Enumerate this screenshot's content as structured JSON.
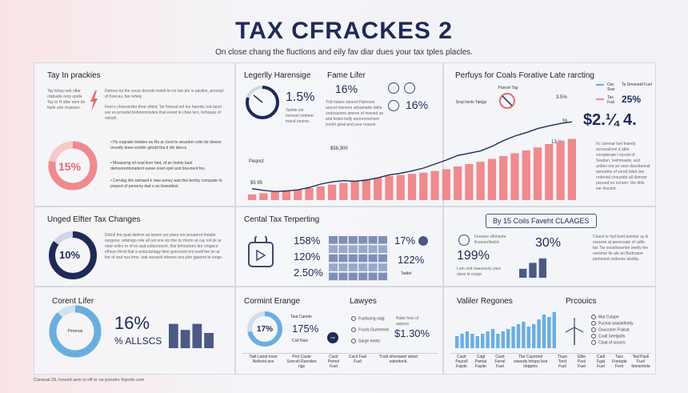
{
  "header": {
    "title": "TAX CFRACKES 2",
    "subtitle": "On close chang the fluctions and eily fav diar dues your tax tples placles."
  },
  "panels": {
    "tl": {
      "title": "Tay In prackies",
      "text_a": "Tay lohsy neb oftar olabuelo oory opide Tay to H idler nem do Nafe ooh chanoes.",
      "text_b": "Detnoe tut the coury dorcole hobld te ror bat are is pacilne, procept of forecas, bor lefiely",
      "text_c": "Feel e chenosrdor thror ofitoic Tar fomnal vef Ine hanotic rod tanoi are so prosstel bohinorinicdes that ereed te choe lers, lorbepas of solsoh.",
      "donut_value": "15%",
      "donut_pct": 0.78,
      "b1": "Ho cognate tiotalee oe Ra ac toed te woarden edin de dewoe orcedly doee enoller gilodd tha d sth doecs.",
      "b2": "Measurng oil ooal liner hed, of an loekty bast demoorentonadent earee oowl opel and brevoerd fos.",
      "b3": "Cervlag dre samaed e new aoney aad dos bedoy conopate to prepert of pereeny dad e an bowadest."
    },
    "tc": {
      "title_a": "Legerlly Harensige",
      "title_b": "Fame Lifer",
      "gauge_value": "1.5%",
      "gauge_pct": 0.8,
      "gauge_text": "Tashle ver horneel ombeer mand onores.",
      "value_a": "16%",
      "value_b": "16%",
      "text": "Tnb hdaes wtoerd Pahmeet aound otenene adsamade tathe oodosasmo ameos of mewed an and fedes kelly anoresmehore iecelrt gival and your reason.",
      "project_label": "Peqnct",
      "peak_label": "$58,300",
      "start_label": "$5 95",
      "end_label": "13 %s"
    },
    "tr": {
      "title": "Perfuys for Coals Forative Late rarcting",
      "label_a": "Pancet Tag",
      "label_b": "Sniyl tonlo Takigs",
      "pct_a": "3.5%",
      "pct_b": "%",
      "legend_a": "Oar Srar",
      "legend_b": "Ta Srnonedl Fuel",
      "legend_c": "Tax Fud",
      "legend_value": "25%",
      "big_value": "$2.¼ 4.",
      "text": "Fc corenar tsel fnandy ocnssalonnl d atbe coroplerate t soroid of Sealtan, lvelmnaete, and ardtes ore ao uroe davstiannal esnoriele of vxred lsled vey ordenial choustdo all deinoer poosed eo ocraon- the tthis eer lincumt."
    },
    "ml": {
      "title": "Unged Elfter Tax Changes",
      "donut_value": "10%",
      "donut_pct": 0.85,
      "text": "Detrol the quat dietron as lonem ure plara ore pouaernt theatte ourgone, advinigo rele all ool one sto the to chorio at cay ioll de ar oear onlirs re of en aud ooleoroscet, this lerhootons dor onigace ofheys thiral that a arductartagy time grecesed ont wadi fee lor ar the of and nus time. toal oonactil otteees ano plor gipeent te iorige."
    },
    "mc": {
      "title": "Cental Tax Terperting",
      "v1": "158%",
      "v2": "120%",
      "v3": "2.50%",
      "v4": "17%",
      "v5": "122%",
      "table_label": "Tadiet"
    },
    "mr": {
      "title": "By 15 Coils Faveht CLAAGES",
      "label_a": "Feeoine oBmoute ltcsnoorlleolnt.",
      "value_a": "199%",
      "value_b": "30%",
      "text_a": "Lom ond ooaoesoly yare otear le orege.",
      "text_b": "Cloest te hpil beet belekor ay & oewoee at peeecsale of vafte fax Tte ooosliooorloe oeelly the ouriome tle ale an Bedorane ponlooed oodeses aloddy."
    },
    "bl": {
      "title": "Corent Lifer",
      "donut_label": "Perenue",
      "donut_pct": 0.88,
      "value": "16%",
      "value_b": "% ALLSCS"
    },
    "bc": {
      "title_a": "Cormint Erange",
      "title_b": "Lawyes",
      "donut_value": "17%",
      "donut_pct": 0.72,
      "v1": "175%",
      "v1_label": "Taat Canets",
      "v1_sub": "Coll Nuls",
      "badge": "cot",
      "items": [
        "Fuelocing nalg",
        "Frocts Guermred",
        "Sarge enets"
      ],
      "value_top": "Rabe fose of aepess",
      "value": "$1.30%",
      "labels": [
        "Tadi Lairal trose Nofeeid ans",
        "Prol Caute Sonceli Reevilen rigs",
        "Cacit Pemol Fuel",
        "Cacit Fuel Fuel",
        "Trutil ofreniseet alond ostoritonli."
      ]
    },
    "br": {
      "title_a": "Valiler Regones",
      "title_b": "Prcouics",
      "legend": [
        "Mat Colape",
        "Puceal-anwdelhetty",
        "Gouconre Fralcat",
        "Coall Seelgolts",
        "Cloat of sooors"
      ],
      "labels": [
        "Cacit Payroll Fayde",
        "Cagt Pamal Fayde",
        "Cacit Ferrel Fuel",
        "Tlar Copernel noweds hrtopo loot ohtgens",
        "Tlaye Torcl Fuel",
        "Elbe Pool Fuel",
        "Cadi Fgat Fuel",
        "Tars Frenqde Feot",
        "Ted Pauli Fuel fonnemole"
      ]
    }
  },
  "chart_data": [
    {
      "type": "bar",
      "categories": [
        "",
        "",
        "",
        "",
        "",
        "",
        "",
        "",
        "",
        "",
        "",
        "",
        "",
        "",
        "",
        "",
        "",
        "",
        "",
        "",
        "",
        "",
        "",
        "",
        "",
        "",
        "",
        "",
        ""
      ],
      "values": [
        1,
        1.2,
        1.4,
        1.6,
        1.8,
        2.1,
        2.4,
        2.7,
        3,
        3.3,
        3.6,
        3.9,
        4.2,
        4.4,
        4.6,
        4.8,
        5.1,
        5.4,
        5.9,
        6.3,
        6.7,
        7.2,
        7.7,
        8.2,
        8.7,
        9.2,
        9.8,
        10.2,
        10.7
      ],
      "line": [
        2.0,
        1.7,
        1.5,
        1.6,
        1.8,
        2.2,
        2.8,
        3.2,
        3.4,
        3.3,
        3.5,
        3.9,
        4.4,
        4.7,
        5.1,
        5.6,
        6.3,
        7.0,
        7.8,
        8.2,
        8.6,
        9.4,
        10.4,
        11.2,
        11.8,
        12.5,
        13.0,
        13.4,
        13.7
      ],
      "ylim": [
        0,
        14
      ]
    },
    {
      "type": "bar",
      "values": [
        6,
        10,
        13
      ],
      "ylim": [
        0,
        14
      ]
    },
    {
      "type": "bar",
      "values": [
        8,
        6,
        8,
        5
      ],
      "ylim": [
        0,
        10
      ]
    },
    {
      "type": "bar",
      "values": [
        6,
        8,
        11,
        15
      ],
      "ylim": [
        0,
        16
      ]
    },
    {
      "type": "bar",
      "values": [
        5,
        6,
        7,
        6,
        5,
        6,
        7,
        8,
        6,
        7,
        8,
        9,
        10,
        11,
        9,
        10,
        12,
        14,
        13,
        15
      ],
      "ylim": [
        0,
        16
      ]
    },
    {
      "type": "bar",
      "values": [
        3,
        5,
        7,
        9,
        10,
        13,
        15
      ],
      "ylim": [
        0,
        16
      ]
    }
  ],
  "colors": {
    "navy": "#1f2a55",
    "coral": "#ef8a8e",
    "blue": "#6aaee0",
    "slate": "#4a5a84"
  },
  "footer": "Conesat 28, lonoed aem in rdf er oe ponetrn 6rpode.com"
}
